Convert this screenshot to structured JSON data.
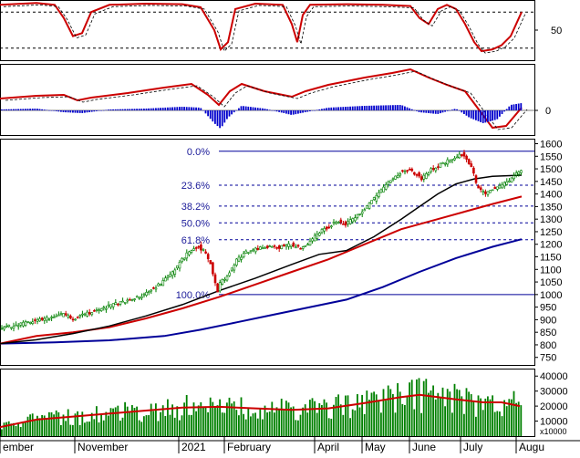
{
  "chart_data": [
    {
      "type": "line",
      "panel": "oscillator",
      "y_ticks": [
        "50"
      ],
      "reference_lines": [
        80,
        20
      ],
      "ylim": [
        0,
        100
      ]
    },
    {
      "type": "line+bar",
      "panel": "macd",
      "y_ticks": [
        "0"
      ]
    },
    {
      "type": "candlestick",
      "panel": "price",
      "ylim": [
        720,
        1620
      ],
      "y_ticks": [
        "1600",
        "1550",
        "1500",
        "1450",
        "1400",
        "1350",
        "1300",
        "1250",
        "1200",
        "1150",
        "1100",
        "1050",
        "1000",
        "950",
        "900",
        "850",
        "800",
        "750"
      ],
      "fibonacci": {
        "high": 1570,
        "low": 1000,
        "levels": [
          {
            "label": "0.0%",
            "value": 1570
          },
          {
            "label": "23.6%",
            "value": 1435
          },
          {
            "label": "38.2%",
            "value": 1352
          },
          {
            "label": "50.0%",
            "value": 1285
          },
          {
            "label": "61.8%",
            "value": 1218
          },
          {
            "label": "100.0%",
            "value": 1000
          }
        ]
      },
      "close_path": [
        [
          0,
          865
        ],
        [
          20,
          880
        ],
        [
          40,
          895
        ],
        [
          60,
          915
        ],
        [
          70,
          920
        ],
        [
          80,
          905
        ],
        [
          100,
          930
        ],
        [
          120,
          955
        ],
        [
          140,
          975
        ],
        [
          160,
          1005
        ],
        [
          175,
          1040
        ],
        [
          190,
          1090
        ],
        [
          200,
          1140
        ],
        [
          210,
          1180
        ],
        [
          218,
          1190
        ],
        [
          225,
          1170
        ],
        [
          232,
          1110
        ],
        [
          238,
          1010
        ],
        [
          242,
          1050
        ],
        [
          250,
          1080
        ],
        [
          260,
          1140
        ],
        [
          270,
          1170
        ],
        [
          280,
          1180
        ],
        [
          290,
          1190
        ],
        [
          300,
          1185
        ],
        [
          310,
          1190
        ],
        [
          320,
          1200
        ],
        [
          330,
          1180
        ],
        [
          340,
          1210
        ],
        [
          350,
          1250
        ],
        [
          360,
          1270
        ],
        [
          370,
          1290
        ],
        [
          380,
          1280
        ],
        [
          390,
          1310
        ],
        [
          400,
          1340
        ],
        [
          410,
          1380
        ],
        [
          420,
          1420
        ],
        [
          430,
          1460
        ],
        [
          440,
          1490
        ],
        [
          448,
          1500
        ],
        [
          456,
          1480
        ],
        [
          462,
          1460
        ],
        [
          470,
          1490
        ],
        [
          480,
          1510
        ],
        [
          490,
          1530
        ],
        [
          500,
          1550
        ],
        [
          506,
          1560
        ],
        [
          512,
          1530
        ],
        [
          518,
          1500
        ],
        [
          522,
          1440
        ],
        [
          528,
          1410
        ],
        [
          534,
          1400
        ],
        [
          540,
          1420
        ],
        [
          550,
          1430
        ],
        [
          560,
          1460
        ],
        [
          567,
          1480
        ],
        [
          572,
          1500
        ]
      ],
      "ma_short": [
        [
          0,
          805
        ],
        [
          40,
          820
        ],
        [
          80,
          845
        ],
        [
          120,
          875
        ],
        [
          160,
          915
        ],
        [
          200,
          960
        ],
        [
          240,
          1015
        ],
        [
          280,
          1065
        ],
        [
          320,
          1120
        ],
        [
          350,
          1160
        ],
        [
          380,
          1175
        ],
        [
          410,
          1230
        ],
        [
          440,
          1300
        ],
        [
          460,
          1350
        ],
        [
          480,
          1400
        ],
        [
          500,
          1440
        ],
        [
          520,
          1460
        ],
        [
          540,
          1470
        ],
        [
          572,
          1475
        ]
      ],
      "ma_medium": [
        [
          0,
          805
        ],
        [
          40,
          835
        ],
        [
          80,
          850
        ],
        [
          120,
          870
        ],
        [
          160,
          905
        ],
        [
          200,
          945
        ],
        [
          240,
          990
        ],
        [
          280,
          1040
        ],
        [
          320,
          1090
        ],
        [
          360,
          1140
        ],
        [
          400,
          1200
        ],
        [
          440,
          1260
        ],
        [
          480,
          1300
        ],
        [
          510,
          1330
        ],
        [
          540,
          1360
        ],
        [
          572,
          1390
        ]
      ],
      "ma_long": [
        [
          0,
          805
        ],
        [
          60,
          810
        ],
        [
          120,
          818
        ],
        [
          180,
          835
        ],
        [
          220,
          860
        ],
        [
          260,
          890
        ],
        [
          300,
          920
        ],
        [
          340,
          950
        ],
        [
          380,
          980
        ],
        [
          420,
          1030
        ],
        [
          460,
          1090
        ],
        [
          500,
          1145
        ],
        [
          540,
          1190
        ],
        [
          572,
          1220
        ]
      ]
    },
    {
      "type": "bar",
      "panel": "volume",
      "ylim": [
        0,
        45000
      ],
      "y_ticks": [
        "40000",
        "30000",
        "20000",
        "10000"
      ],
      "unit_label": "x10000",
      "volume_ma": [
        [
          0,
          6000
        ],
        [
          40,
          11000
        ],
        [
          80,
          13000
        ],
        [
          120,
          15000
        ],
        [
          160,
          17000
        ],
        [
          200,
          19000
        ],
        [
          240,
          19500
        ],
        [
          280,
          18500
        ],
        [
          320,
          17500
        ],
        [
          360,
          18500
        ],
        [
          400,
          22000
        ],
        [
          440,
          26000
        ],
        [
          460,
          27500
        ],
        [
          480,
          26000
        ],
        [
          500,
          24500
        ],
        [
          530,
          22500
        ],
        [
          550,
          22500
        ],
        [
          570,
          20000
        ]
      ]
    }
  ],
  "x_axis": {
    "labels": [
      {
        "text": "ember",
        "x": 0
      },
      {
        "text": "November",
        "x": 82
      },
      {
        "text": "2021",
        "x": 196
      },
      {
        "text": "February",
        "x": 246
      },
      {
        "text": "April",
        "x": 345
      },
      {
        "text": "May",
        "x": 397
      },
      {
        "text": "June",
        "x": 449
      },
      {
        "text": "July",
        "x": 505
      },
      {
        "text": "Augu",
        "x": 566
      }
    ]
  },
  "colors": {
    "candle_up": "#008000",
    "candle_down": "#cc0000",
    "ma_short": "#000000",
    "ma_medium": "#cc0000",
    "ma_long": "#000099",
    "fib_line": "#000099",
    "fib_text": "#1a1a99",
    "osc_line": "#cc0000",
    "macd_hist": "#0000cc",
    "volume_bar": "#008000",
    "volume_ma": "#cc0000"
  }
}
